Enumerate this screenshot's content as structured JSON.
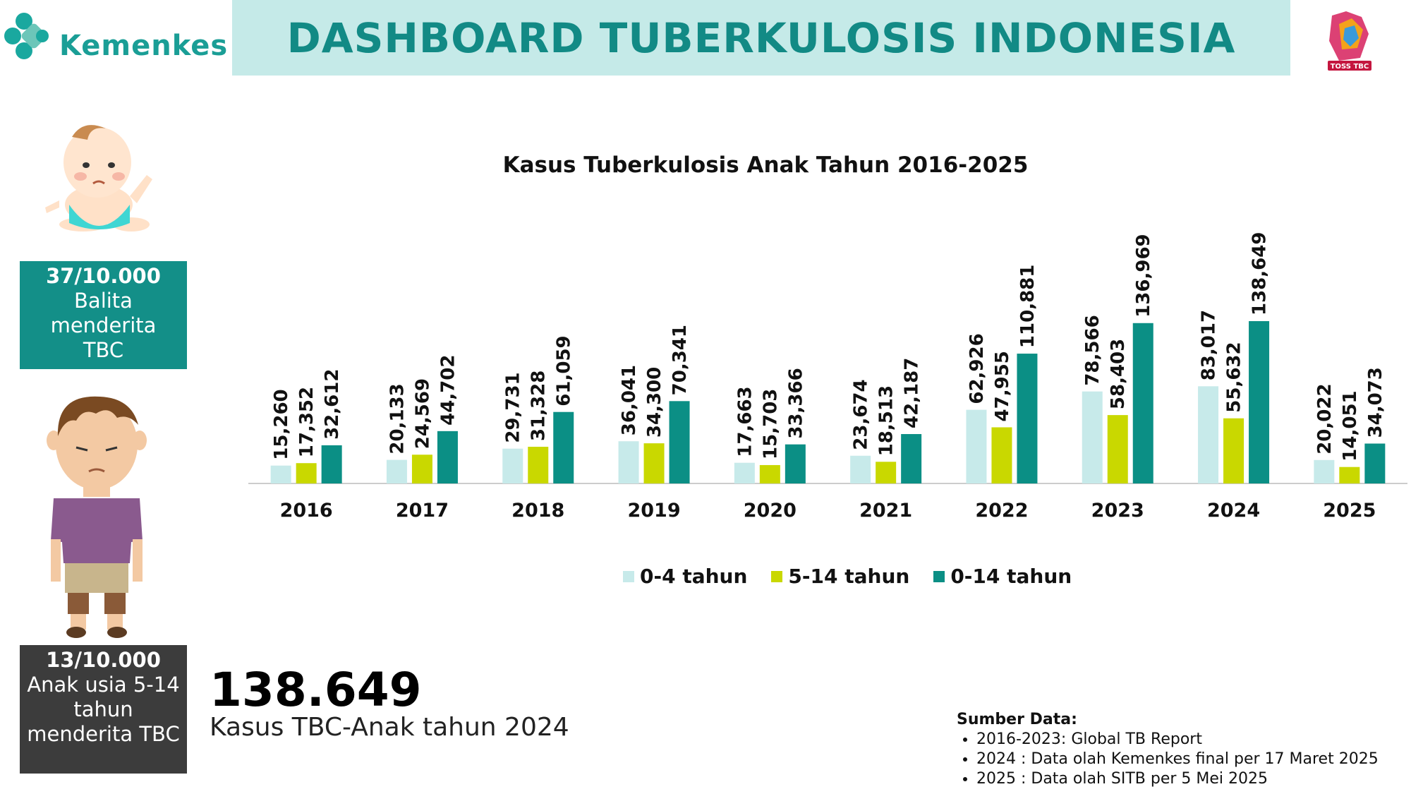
{
  "brand": {
    "name": "Kemenkes"
  },
  "header": {
    "title": "DASHBOARD TUBERKULOSIS INDONESIA"
  },
  "toss_logo": {
    "text": "TOSS TBC"
  },
  "colors": {
    "teal_dark": "#138f88",
    "teal_light": "#c5eae8",
    "lime": "#c9d800",
    "light_cyan": "#c7eaea",
    "series_0_14": "#0b8f85"
  },
  "stats": [
    {
      "value": "37/10.000",
      "text": "Balita menderita TBC"
    },
    {
      "value": "13/10.000",
      "text": "Anak usia 5-14 tahun menderita TBC"
    }
  ],
  "highlight": {
    "value": "138.649",
    "caption": "Kasus TBC-Anak tahun 2024"
  },
  "source": {
    "title": "Sumber Data:",
    "items": [
      "2016-2023: Global TB Report",
      "2024 : Data olah Kemenkes final per 17 Maret 2025",
      "2025 : Data olah SITB per 5 Mei 2025"
    ]
  },
  "chart_data": {
    "type": "bar",
    "title": "Kasus Tuberkulosis Anak Tahun 2016-2025",
    "categories": [
      "2016",
      "2017",
      "2018",
      "2019",
      "2020",
      "2021",
      "2022",
      "2023",
      "2024",
      "2025"
    ],
    "series": [
      {
        "name": "0-4 tahun",
        "color": "#c7eaea",
        "values": [
          15260,
          20133,
          29731,
          36041,
          17663,
          23674,
          62926,
          78566,
          83017,
          20022
        ],
        "labels": [
          "15,260",
          "20,133",
          "29,731",
          "36,041",
          "17,663",
          "23,674",
          "62,926",
          "78,566",
          "83,017",
          "20,022"
        ]
      },
      {
        "name": "5-14 tahun",
        "color": "#c9d800",
        "values": [
          17352,
          24569,
          31328,
          34300,
          15703,
          18513,
          47955,
          58403,
          55632,
          14051
        ],
        "labels": [
          "17,352",
          "24,569",
          "31,328",
          "34,300",
          "15,703",
          "18,513",
          "47,955",
          "58,403",
          "55,632",
          "14,051"
        ]
      },
      {
        "name": "0-14 tahun",
        "color": "#0b8f85",
        "values": [
          32612,
          44702,
          61059,
          70341,
          33366,
          42187,
          110881,
          136969,
          138649,
          34073
        ],
        "labels": [
          "32,612",
          "44,702",
          "61,059",
          "70,341",
          "33,366",
          "42,187",
          "110,881",
          "136,969",
          "138,649",
          "34,073"
        ]
      }
    ],
    "legend": "bottom",
    "grid": false
  }
}
